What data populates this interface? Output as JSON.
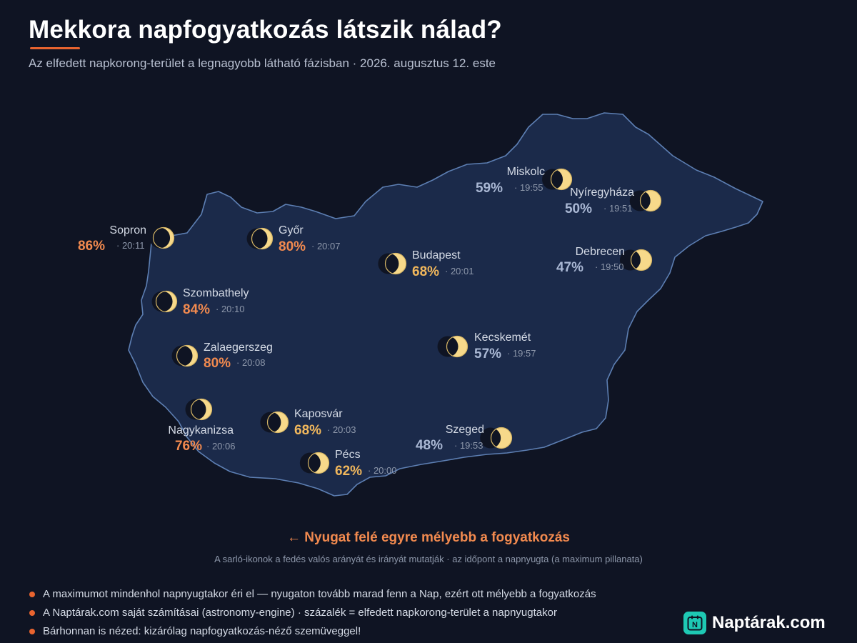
{
  "header": {
    "title": "Mekkora napfogyatkozás látszik nálad?",
    "subtitle": "Az elfedett napkorong-terület a legnagyobb látható fázisban · 2026. augusztus 12. este"
  },
  "colors": {
    "background": "#0f1423",
    "map_fill": "#1b2a4a",
    "map_border": "#5d7fb3",
    "accent": "#e9642f",
    "pct_high": "#f28a4f",
    "pct_mid": "#f2b85c",
    "pct_low": "#aab8d4",
    "sun": "#f7d98a"
  },
  "cities": [
    {
      "name": "Miskolc",
      "pct": "59%",
      "time": "· 19:55",
      "level": "low"
    },
    {
      "name": "Nyíregyháza",
      "pct": "50%",
      "time": "· 19:51",
      "level": "low"
    },
    {
      "name": "Debrecen",
      "pct": "47%",
      "time": "· 19:50",
      "level": "low"
    },
    {
      "name": "Sopron",
      "pct": "86%",
      "time": "· 20:11",
      "level": "high"
    },
    {
      "name": "Győr",
      "pct": "80%",
      "time": "· 20:07",
      "level": "high"
    },
    {
      "name": "Budapest",
      "pct": "68%",
      "time": "· 20:01",
      "level": "mid"
    },
    {
      "name": "Szombathely",
      "pct": "84%",
      "time": "· 20:10",
      "level": "high"
    },
    {
      "name": "Zalaegerszeg",
      "pct": "80%",
      "time": "· 20:08",
      "level": "high"
    },
    {
      "name": "Kecskemét",
      "pct": "57%",
      "time": "· 19:57",
      "level": "low"
    },
    {
      "name": "Kaposvár",
      "pct": "68%",
      "time": "· 20:03",
      "level": "mid"
    },
    {
      "name": "Nagykanizsa",
      "pct": "76%",
      "time": "· 20:06",
      "level": "high"
    },
    {
      "name": "Pécs",
      "pct": "62%",
      "time": "· 20:00",
      "level": "mid"
    },
    {
      "name": "Szeged",
      "pct": "48%",
      "time": "· 19:53",
      "level": "low"
    }
  ],
  "headline": "← Nyugat felé egyre mélyebb a fogyatkozás",
  "caption": "A sarló-ikonok a fedés valós arányát és irányát mutatják · az időpont a napnyugta (a maximum pillanata)",
  "notes": [
    "A maximumot mindenhol napnyugtakor éri el — nyugaton tovább marad fenn a Nap, ezért ott mélyebb a fogyatkozás",
    "A Naptárak.com saját számításai (astronomy-engine) · százalék = elfedett napkorong-terület a napnyugtakor",
    "Bárhonnan is nézed: kizárólag napfogyatkozás-néző szemüveggel!"
  ],
  "brand": {
    "icon_letter": "N",
    "name": "Naptárak.com"
  }
}
